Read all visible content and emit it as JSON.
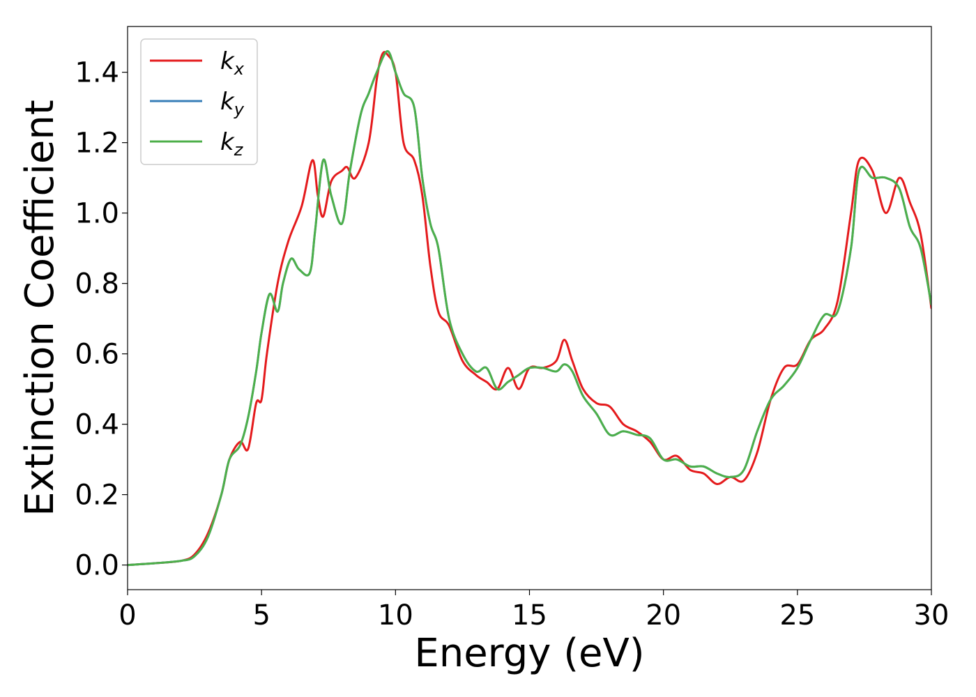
{
  "chart_data": {
    "type": "line",
    "title": "",
    "xlabel": "Energy (eV)",
    "ylabel": "Extinction Coefficient",
    "xlim": [
      0,
      30
    ],
    "ylim": [
      -0.07,
      1.53
    ],
    "xticks": [
      0,
      5,
      10,
      15,
      20,
      25,
      30
    ],
    "xtick_labels": [
      "0",
      "5",
      "10",
      "15",
      "20",
      "25",
      "30"
    ],
    "yticks": [
      0.0,
      0.2,
      0.4,
      0.6,
      0.8,
      1.0,
      1.2,
      1.4
    ],
    "ytick_labels": [
      "0.0",
      "0.2",
      "0.4",
      "0.6",
      "0.8",
      "1.0",
      "1.2",
      "1.4"
    ],
    "grid": false,
    "legend_position": "top-left",
    "series": [
      {
        "name": "k_x",
        "label_main": "k",
        "label_sub": "x",
        "color": "#e41a1c",
        "x": [
          0,
          1,
          2,
          2.5,
          3,
          3.5,
          3.8,
          4.2,
          4.5,
          4.8,
          5.0,
          5.2,
          5.6,
          6.0,
          6.5,
          6.9,
          7.1,
          7.3,
          7.6,
          8.0,
          8.2,
          8.5,
          9.0,
          9.3,
          9.5,
          9.7,
          10.0,
          10.3,
          10.7,
          11.0,
          11.3,
          11.6,
          12.0,
          12.5,
          13.0,
          13.4,
          13.8,
          14.2,
          14.6,
          15.0,
          15.5,
          16.0,
          16.3,
          16.6,
          17.0,
          17.5,
          18.0,
          18.5,
          19.0,
          19.5,
          20.0,
          20.5,
          21.0,
          21.5,
          22.0,
          22.5,
          23.0,
          23.5,
          24.0,
          24.5,
          25.0,
          25.5,
          26.0,
          26.5,
          27.0,
          27.3,
          27.8,
          28.3,
          28.8,
          29.2,
          29.6,
          30.0
        ],
        "y": [
          0.0,
          0.005,
          0.012,
          0.03,
          0.09,
          0.2,
          0.3,
          0.35,
          0.33,
          0.46,
          0.47,
          0.6,
          0.8,
          0.92,
          1.02,
          1.15,
          1.05,
          0.99,
          1.09,
          1.12,
          1.13,
          1.1,
          1.2,
          1.38,
          1.45,
          1.45,
          1.4,
          1.2,
          1.15,
          1.05,
          0.85,
          0.72,
          0.68,
          0.58,
          0.54,
          0.52,
          0.5,
          0.56,
          0.5,
          0.56,
          0.56,
          0.58,
          0.64,
          0.58,
          0.5,
          0.46,
          0.45,
          0.4,
          0.38,
          0.35,
          0.3,
          0.31,
          0.27,
          0.26,
          0.23,
          0.25,
          0.24,
          0.32,
          0.47,
          0.56,
          0.57,
          0.64,
          0.67,
          0.75,
          1.0,
          1.15,
          1.12,
          1.0,
          1.1,
          1.03,
          0.94,
          0.73
        ]
      },
      {
        "name": "k_y",
        "label_main": "k",
        "label_sub": "y",
        "color": "#377eb8",
        "x": [
          0,
          1,
          2,
          2.5,
          3,
          3.5,
          3.8,
          4.2,
          4.5,
          4.8,
          5.0,
          5.3,
          5.6,
          5.8,
          6.1,
          6.4,
          6.8,
          7.0,
          7.3,
          7.6,
          8.0,
          8.3,
          8.7,
          9.0,
          9.3,
          9.7,
          10.0,
          10.3,
          10.7,
          11.0,
          11.3,
          11.6,
          12.0,
          12.5,
          13.0,
          13.4,
          13.8,
          14.2,
          14.6,
          15.0,
          15.5,
          16.0,
          16.3,
          16.6,
          17.0,
          17.5,
          18.0,
          18.5,
          19.0,
          19.5,
          20.0,
          20.5,
          21.0,
          21.5,
          22.0,
          22.5,
          23.0,
          23.5,
          24.0,
          24.5,
          25.0,
          25.5,
          26.0,
          26.5,
          27.0,
          27.3,
          27.8,
          28.3,
          28.8,
          29.2,
          29.6,
          30.0
        ],
        "y": [
          0.0,
          0.005,
          0.012,
          0.025,
          0.08,
          0.2,
          0.3,
          0.34,
          0.42,
          0.55,
          0.66,
          0.77,
          0.72,
          0.8,
          0.87,
          0.84,
          0.83,
          0.95,
          1.15,
          1.05,
          0.97,
          1.12,
          1.28,
          1.34,
          1.4,
          1.46,
          1.4,
          1.34,
          1.3,
          1.1,
          0.97,
          0.9,
          0.7,
          0.6,
          0.55,
          0.56,
          0.5,
          0.52,
          0.54,
          0.56,
          0.56,
          0.55,
          0.57,
          0.55,
          0.48,
          0.43,
          0.37,
          0.38,
          0.37,
          0.36,
          0.3,
          0.3,
          0.28,
          0.28,
          0.26,
          0.25,
          0.27,
          0.38,
          0.47,
          0.51,
          0.56,
          0.64,
          0.71,
          0.72,
          0.9,
          1.12,
          1.1,
          1.1,
          1.07,
          0.96,
          0.9,
          0.74
        ]
      },
      {
        "name": "k_z",
        "label_main": "k",
        "label_sub": "z",
        "color": "#4daf4a",
        "x": [
          0,
          1,
          2,
          2.5,
          3,
          3.5,
          3.8,
          4.2,
          4.5,
          4.8,
          5.0,
          5.3,
          5.6,
          5.8,
          6.1,
          6.4,
          6.8,
          7.0,
          7.3,
          7.6,
          8.0,
          8.3,
          8.7,
          9.0,
          9.3,
          9.7,
          10.0,
          10.3,
          10.7,
          11.0,
          11.3,
          11.6,
          12.0,
          12.5,
          13.0,
          13.4,
          13.8,
          14.2,
          14.6,
          15.0,
          15.5,
          16.0,
          16.3,
          16.6,
          17.0,
          17.5,
          18.0,
          18.5,
          19.0,
          19.5,
          20.0,
          20.5,
          21.0,
          21.5,
          22.0,
          22.5,
          23.0,
          23.5,
          24.0,
          24.5,
          25.0,
          25.5,
          26.0,
          26.5,
          27.0,
          27.3,
          27.8,
          28.3,
          28.8,
          29.2,
          29.6,
          30.0
        ],
        "y": [
          0.0,
          0.005,
          0.012,
          0.025,
          0.08,
          0.2,
          0.3,
          0.34,
          0.42,
          0.55,
          0.66,
          0.77,
          0.72,
          0.8,
          0.87,
          0.84,
          0.83,
          0.95,
          1.15,
          1.05,
          0.97,
          1.12,
          1.28,
          1.34,
          1.4,
          1.46,
          1.4,
          1.34,
          1.3,
          1.1,
          0.97,
          0.9,
          0.7,
          0.6,
          0.55,
          0.56,
          0.5,
          0.52,
          0.54,
          0.56,
          0.56,
          0.55,
          0.57,
          0.55,
          0.48,
          0.43,
          0.37,
          0.38,
          0.37,
          0.36,
          0.3,
          0.3,
          0.28,
          0.28,
          0.26,
          0.25,
          0.27,
          0.38,
          0.47,
          0.51,
          0.56,
          0.64,
          0.71,
          0.72,
          0.9,
          1.12,
          1.1,
          1.1,
          1.07,
          0.96,
          0.9,
          0.74
        ]
      }
    ]
  }
}
